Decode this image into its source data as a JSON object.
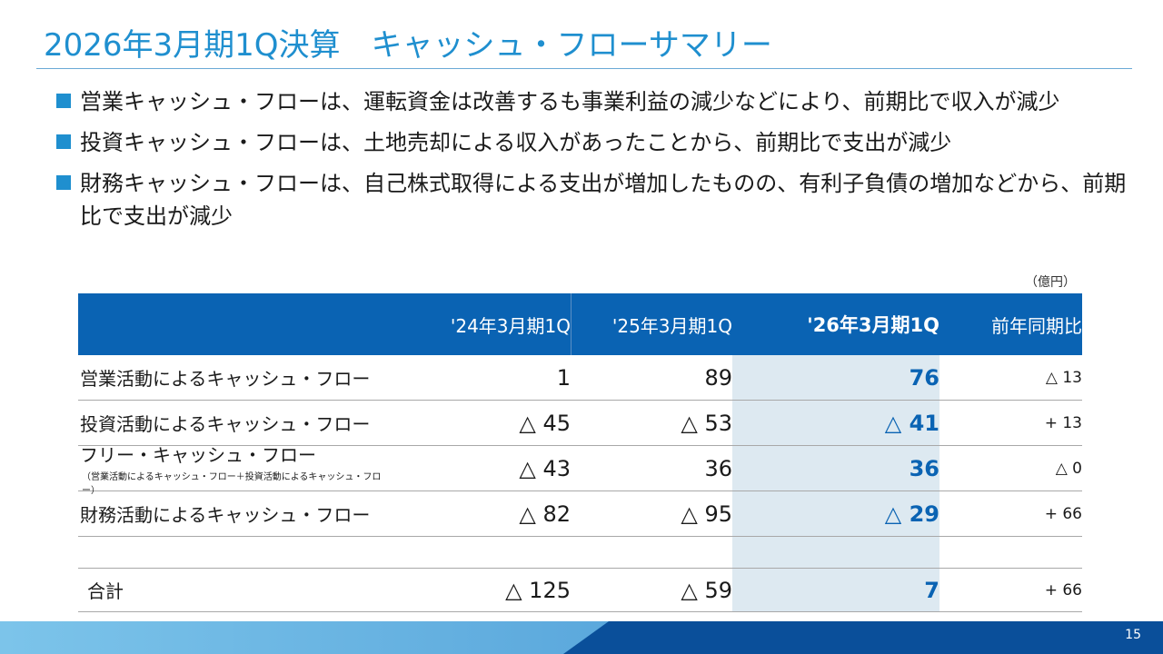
{
  "title": "2026年3月期1Q決算　キャッシュ・フローサマリー",
  "bullets": [
    "営業キャッシュ・フローは、運転資金は改善するも事業利益の減少などにより、前期比で収入が減少",
    "投資キャッシュ・フローは、土地売却による収入があったことから、前期比で支出が減少",
    "財務キャッシュ・フローは、自己株式取得による支出が増加したものの、有利子負債の増加などから、前期比で支出が減少"
  ],
  "unit": "（億円）",
  "table": {
    "headers": [
      "",
      "'24年3月期1Q",
      "'25年3月期1Q",
      "'26年3月期1Q",
      "前年同期比"
    ],
    "rows": [
      {
        "label": "営業活動によるキャッシュ・フロー",
        "sub": "",
        "v24": "1",
        "v25": "89",
        "v26": "76",
        "yoy": "△ 13"
      },
      {
        "label": "投資活動によるキャッシュ・フロー",
        "sub": "",
        "v24": "△ 45",
        "v25": "△ 53",
        "v26": "△ 41",
        "yoy": "+ 13"
      },
      {
        "label": "フリー・キャッシュ・フロー",
        "sub": "（営業活動によるキャッシュ・フロー＋投資活動によるキャッシュ・フロー）",
        "v24": "△ 43",
        "v25": "36",
        "v26": "36",
        "yoy": "△ 0"
      },
      {
        "label": "財務活動によるキャッシュ・フロー",
        "sub": "",
        "v24": "△ 82",
        "v25": "△ 95",
        "v26": "△ 29",
        "yoy": "+ 66"
      }
    ],
    "total": {
      "label": "合計",
      "v24": "△ 125",
      "v25": "△ 59",
      "v26": "7",
      "yoy": "+ 66"
    }
  },
  "page_number": "15",
  "colors": {
    "accent": "#1f8fcf",
    "header": "#0a63b3",
    "highlight": "#dde9f1"
  }
}
